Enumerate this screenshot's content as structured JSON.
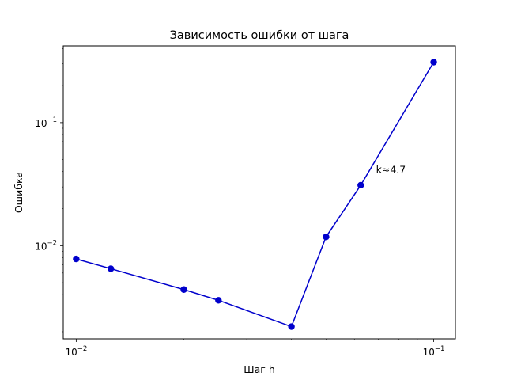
{
  "chart_data": {
    "type": "line",
    "title": "Зависимость ошибки от шага",
    "xlabel": "Шаг h",
    "ylabel": "Ошибка",
    "xscale": "log",
    "yscale": "log",
    "xlim": [
      0.0092,
      0.115
    ],
    "ylim": [
      0.00175,
      0.42
    ],
    "grid": false,
    "x_ticks": [
      {
        "value": 0.01,
        "base": "10",
        "exp": "−2"
      },
      {
        "value": 0.1,
        "base": "10",
        "exp": "−1"
      }
    ],
    "y_ticks": [
      {
        "value": 0.01,
        "base": "10",
        "exp": "−2"
      },
      {
        "value": 0.1,
        "base": "10",
        "exp": "−1"
      }
    ],
    "series": [
      {
        "color": "#0000cc",
        "marker": "circle",
        "x": [
          0.01,
          0.0125,
          0.02,
          0.025,
          0.04,
          0.05,
          0.0625,
          0.1
        ],
        "y": [
          0.0078,
          0.0065,
          0.0044,
          0.0036,
          0.0022,
          0.0118,
          0.031,
          0.31
        ]
      }
    ],
    "annotations": [
      {
        "text": "k≈4.7",
        "x": 0.069,
        "y": 0.039
      }
    ]
  }
}
